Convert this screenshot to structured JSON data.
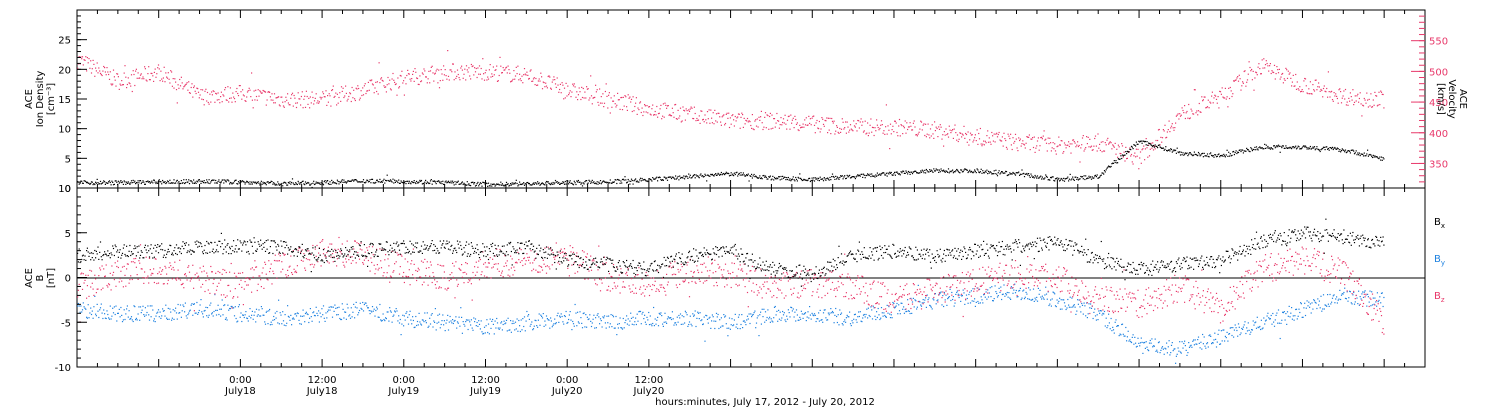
{
  "chart_data": [
    {
      "type": "scatter",
      "panel": "density-velocity",
      "y_left": {
        "label_lines": [
          "ACE",
          "Ion Density",
          "[cm⁻³]"
        ],
        "ylim": [
          0,
          30
        ],
        "ticks": [
          0,
          5,
          10,
          15,
          20,
          25
        ]
      },
      "y_right": {
        "label_lines": [
          "ACE",
          "Velocity",
          "[km/s]"
        ],
        "ylim": [
          310,
          600
        ],
        "ticks": [
          350,
          400,
          450,
          500,
          550
        ],
        "color": "#e8386a"
      },
      "series": [
        {
          "name": "Ion Density",
          "axis": "left",
          "color": "#000000",
          "x_hours": [
            0,
            6,
            12,
            18,
            24,
            30,
            36,
            42,
            48,
            54,
            60,
            66,
            72,
            78,
            84,
            90,
            96,
            102,
            108,
            114,
            120,
            126,
            132,
            138,
            144,
            150,
            156,
            162,
            168,
            174,
            180,
            186,
            192
          ],
          "values": [
            1.0,
            1.0,
            1.1,
            1.2,
            1.1,
            0.8,
            1.0,
            1.3,
            1.2,
            1.0,
            0.7,
            0.8,
            1.0,
            1.1,
            1.5,
            2.0,
            2.5,
            1.8,
            1.5,
            2.0,
            2.5,
            3.0,
            3.0,
            2.5,
            1.5,
            2.0,
            8.0,
            6.0,
            5.5,
            7.0,
            7.0,
            6.5,
            5.0
          ]
        },
        {
          "name": "Velocity",
          "axis": "right",
          "color": "#e8386a",
          "x_hours": [
            0,
            6,
            12,
            18,
            24,
            30,
            36,
            42,
            48,
            54,
            60,
            66,
            72,
            78,
            84,
            90,
            96,
            102,
            108,
            114,
            120,
            126,
            132,
            138,
            144,
            150,
            156,
            162,
            168,
            174,
            180,
            186,
            192
          ],
          "values": [
            520,
            485,
            500,
            460,
            465,
            455,
            455,
            470,
            490,
            500,
            500,
            495,
            470,
            455,
            440,
            430,
            420,
            420,
            415,
            410,
            410,
            405,
            395,
            385,
            380,
            385,
            360,
            430,
            460,
            510,
            480,
            460,
            455
          ]
        }
      ]
    },
    {
      "type": "scatter",
      "panel": "magnetic-field",
      "y_left": {
        "label_lines": [
          "ACE",
          "B",
          "[nT]"
        ],
        "ylim": [
          -10,
          10
        ],
        "ticks": [
          -10,
          -5,
          0,
          5,
          10
        ]
      },
      "zero_line": true,
      "series": [
        {
          "name": "Bx",
          "color": "#000000",
          "x_hours": [
            0,
            6,
            12,
            18,
            24,
            30,
            36,
            42,
            48,
            54,
            60,
            66,
            72,
            78,
            84,
            90,
            96,
            102,
            108,
            114,
            120,
            126,
            132,
            138,
            144,
            150,
            156,
            162,
            168,
            174,
            180,
            186,
            192
          ],
          "values": [
            2.5,
            3.0,
            3.0,
            3.5,
            3.5,
            3.5,
            2.5,
            3.0,
            3.5,
            3.5,
            3.0,
            3.5,
            2.0,
            1.5,
            1.0,
            2.5,
            3.0,
            1.0,
            0.5,
            2.5,
            3.0,
            2.5,
            3.0,
            3.5,
            4.0,
            2.0,
            1.0,
            1.5,
            2.0,
            4.0,
            5.0,
            4.5,
            4.0
          ]
        },
        {
          "name": "By",
          "color": "#1e82e0",
          "x_hours": [
            0,
            6,
            12,
            18,
            24,
            30,
            36,
            42,
            48,
            54,
            60,
            66,
            72,
            78,
            84,
            90,
            96,
            102,
            108,
            114,
            120,
            126,
            132,
            138,
            144,
            150,
            156,
            162,
            168,
            174,
            180,
            186,
            192
          ],
          "values": [
            -3.5,
            -4.0,
            -4.0,
            -3.5,
            -4.0,
            -4.5,
            -4.0,
            -3.5,
            -4.5,
            -5.0,
            -5.5,
            -5.0,
            -4.5,
            -5.0,
            -4.5,
            -4.5,
            -5.0,
            -4.0,
            -4.0,
            -4.5,
            -3.5,
            -2.5,
            -2.0,
            -1.5,
            -2.5,
            -4.0,
            -7.5,
            -8.0,
            -6.5,
            -5.0,
            -3.5,
            -2.0,
            -2.5
          ]
        },
        {
          "name": "Bz",
          "color": "#e8386a",
          "x_hours": [
            0,
            6,
            12,
            18,
            24,
            30,
            36,
            42,
            48,
            54,
            60,
            66,
            72,
            78,
            84,
            90,
            96,
            102,
            108,
            114,
            120,
            126,
            132,
            138,
            144,
            150,
            156,
            162,
            168,
            174,
            180,
            186,
            192
          ],
          "values": [
            -1.0,
            0.5,
            1.0,
            0.0,
            -1.0,
            1.5,
            3.0,
            2.5,
            1.0,
            0.0,
            1.5,
            2.0,
            2.5,
            0.0,
            -0.5,
            1.0,
            0.5,
            -1.0,
            -0.5,
            -1.0,
            -2.5,
            -1.5,
            -0.5,
            0.5,
            0.0,
            -2.0,
            -3.0,
            -1.0,
            -3.5,
            1.0,
            2.0,
            0.5,
            -5.0
          ]
        }
      ],
      "legend": [
        "Bx",
        "By",
        "Bz"
      ],
      "legend_placement": "right"
    }
  ],
  "x_axis": {
    "range_hours": [
      0,
      198
    ],
    "tick_labels": [
      {
        "hour": 24,
        "time": "0:00",
        "date": "July18"
      },
      {
        "hour": 36,
        "time": "12:00",
        "date": "July18"
      },
      {
        "hour": 48,
        "time": "0:00",
        "date": "July19"
      },
      {
        "hour": 60,
        "time": "12:00",
        "date": "July19"
      },
      {
        "hour": 72,
        "time": "0:00",
        "date": "July20"
      },
      {
        "hour": 84,
        "time": "12:00",
        "date": "July20"
      }
    ],
    "xlabel": "hours:minutes, July 17, 2012 - July 20, 2012"
  },
  "colors": {
    "density": "#000000",
    "velocity": "#e8386a",
    "bx": "#000000",
    "by": "#1e82e0",
    "bz": "#e8386a"
  }
}
